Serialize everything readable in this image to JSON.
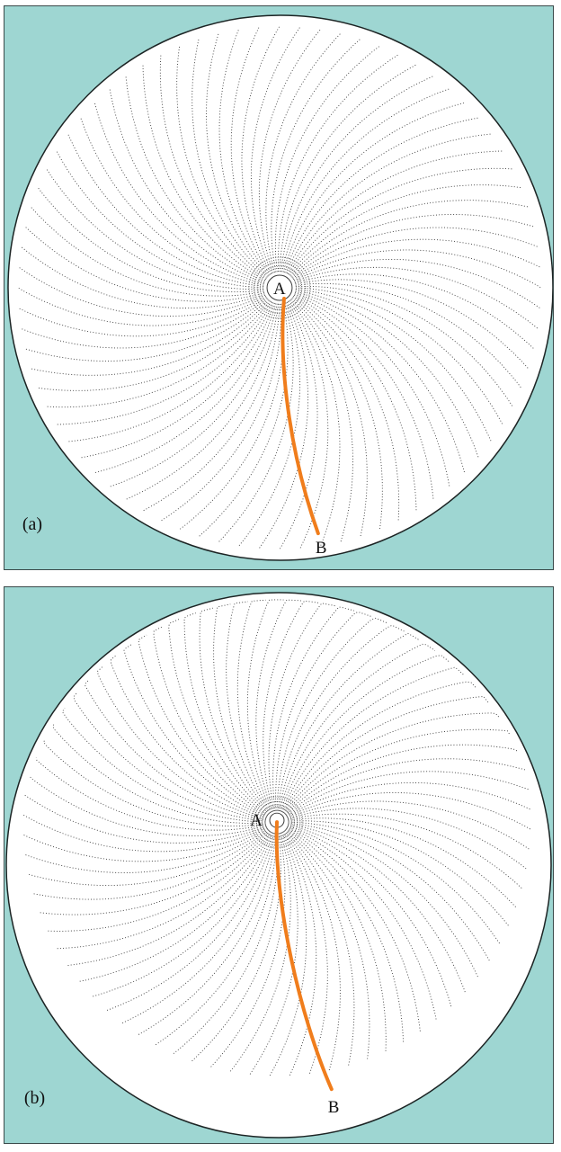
{
  "colors": {
    "background": "#9ed6d2",
    "disk": "#ffffff",
    "disk_edge": "#1c2424",
    "field_lines": "#3b3b3b",
    "path": "#f07d1c"
  },
  "panels": [
    {
      "id": "a",
      "panel_label": "(a)",
      "start_label": "A",
      "end_label": "B",
      "field_line_count": 80
    },
    {
      "id": "b",
      "panel_label": "(b)",
      "start_label": "A",
      "end_label": "B",
      "field_line_count": 80
    }
  ]
}
